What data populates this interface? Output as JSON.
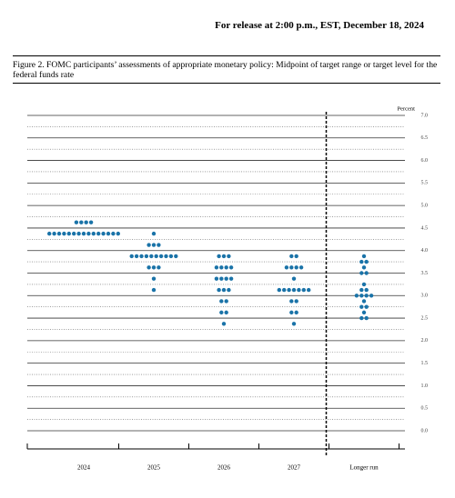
{
  "header": "For release at 2:00 p.m., EST, December 18, 2024",
  "caption": "Figure 2.  FOMC participants’ assessments of appropriate monetary policy:  Midpoint of target range or target level for the federal funds rate",
  "chart_data": {
    "type": "dot",
    "y_label": "Percent",
    "categories": [
      "2024",
      "2025",
      "2026",
      "2027",
      "Longer run"
    ],
    "dots": [
      [
        {
          "rate": 4.625,
          "count": 4
        },
        {
          "rate": 4.375,
          "count": 15
        }
      ],
      [
        {
          "rate": 4.375,
          "count": 1
        },
        {
          "rate": 4.125,
          "count": 3
        },
        {
          "rate": 3.875,
          "count": 10
        },
        {
          "rate": 3.625,
          "count": 3
        },
        {
          "rate": 3.375,
          "count": 1
        },
        {
          "rate": 3.125,
          "count": 1
        }
      ],
      [
        {
          "rate": 3.875,
          "count": 3
        },
        {
          "rate": 3.625,
          "count": 4
        },
        {
          "rate": 3.375,
          "count": 4
        },
        {
          "rate": 3.125,
          "count": 3
        },
        {
          "rate": 2.875,
          "count": 2
        },
        {
          "rate": 2.625,
          "count": 2
        },
        {
          "rate": 2.375,
          "count": 1
        }
      ],
      [
        {
          "rate": 3.875,
          "count": 2
        },
        {
          "rate": 3.625,
          "count": 4
        },
        {
          "rate": 3.375,
          "count": 1
        },
        {
          "rate": 3.125,
          "count": 7
        },
        {
          "rate": 2.875,
          "count": 2
        },
        {
          "rate": 2.625,
          "count": 2
        },
        {
          "rate": 2.375,
          "count": 1
        }
      ],
      [
        {
          "rate": 3.875,
          "count": 1
        },
        {
          "rate": 3.75,
          "count": 2
        },
        {
          "rate": 3.625,
          "count": 1
        },
        {
          "rate": 3.5,
          "count": 2
        },
        {
          "rate": 3.25,
          "count": 1
        },
        {
          "rate": 3.125,
          "count": 2
        },
        {
          "rate": 3.0,
          "count": 4
        },
        {
          "rate": 2.875,
          "count": 1
        },
        {
          "rate": 2.75,
          "count": 2
        },
        {
          "rate": 2.625,
          "count": 1
        },
        {
          "rate": 2.5,
          "count": 2
        }
      ]
    ],
    "color": "#1a73a8",
    "ylim": [
      0,
      7
    ],
    "yticks": [
      {
        "value": 0,
        "label": "0.0"
      },
      0.5,
      {
        "value": 1,
        "label": "1.0"
      },
      1.5,
      {
        "value": 2,
        "label": "2.0"
      },
      2.5,
      {
        "value": 3,
        "label": "3.0"
      },
      3.5,
      {
        "value": 4,
        "label": "4.0"
      },
      4.5,
      {
        "value": 5,
        "label": "5.0"
      },
      5.5,
      {
        "value": 6,
        "label": "6.0"
      },
      6.5,
      {
        "value": 7,
        "label": "7.0"
      }
    ],
    "grid": true
  }
}
